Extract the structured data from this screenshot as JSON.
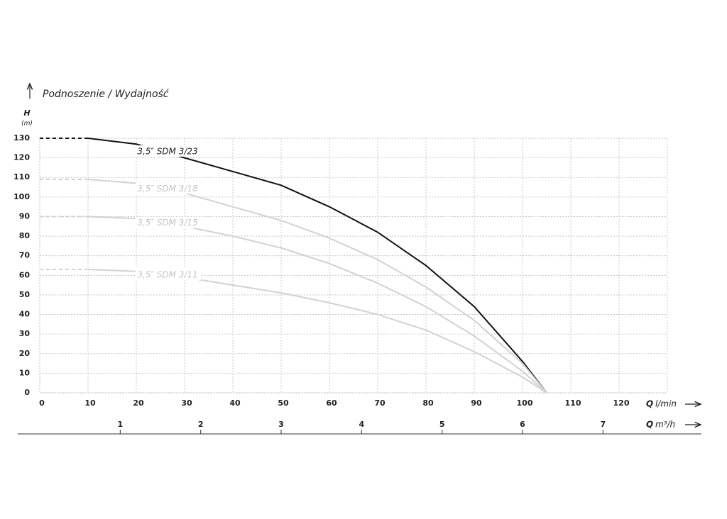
{
  "chart_data": {
    "type": "line",
    "title": "Podnoszenie / Wydajność",
    "y_label_symbol": "H",
    "y_label_unit": "(m)",
    "x_label_symbol": "Q",
    "x_label_unit": "l/min",
    "x2_label_symbol": "Q",
    "x2_label_unit": "m³/h",
    "x": [
      0,
      10,
      20,
      30,
      40,
      50,
      60,
      70,
      80,
      90,
      100,
      105
    ],
    "series": [
      {
        "name": "3,5″ SDM 3/23",
        "color": "#111111",
        "values": [
          130,
          130,
          127,
          120,
          113,
          106,
          95,
          82,
          65,
          44,
          16,
          0
        ]
      },
      {
        "name": "3,5″ SDM 3/18",
        "color": "#d2d2d2",
        "values": [
          109,
          109,
          107,
          102,
          95,
          88,
          79,
          68,
          54,
          37,
          15,
          0
        ]
      },
      {
        "name": "3,5″ SDM 3/15",
        "color": "#d2d2d2",
        "values": [
          90,
          90,
          89,
          85,
          80,
          74,
          66,
          56,
          44,
          29,
          11,
          0
        ]
      },
      {
        "name": "3,5″ SDM 3/11",
        "color": "#d2d2d2",
        "values": [
          63,
          63,
          62,
          59,
          55,
          51,
          46,
          40,
          32,
          21,
          8,
          0
        ]
      }
    ],
    "xlim": [
      0,
      130
    ],
    "xticks": [
      0,
      10,
      20,
      30,
      40,
      50,
      60,
      70,
      80,
      90,
      100,
      110,
      120
    ],
    "ylim": [
      0,
      130
    ],
    "yticks": [
      0,
      10,
      20,
      30,
      40,
      50,
      60,
      70,
      80,
      90,
      100,
      110,
      120,
      130
    ],
    "x2lim": [
      0,
      7.8
    ],
    "x2ticks": [
      1,
      2,
      3,
      4,
      5,
      6,
      7
    ],
    "grid": true
  }
}
